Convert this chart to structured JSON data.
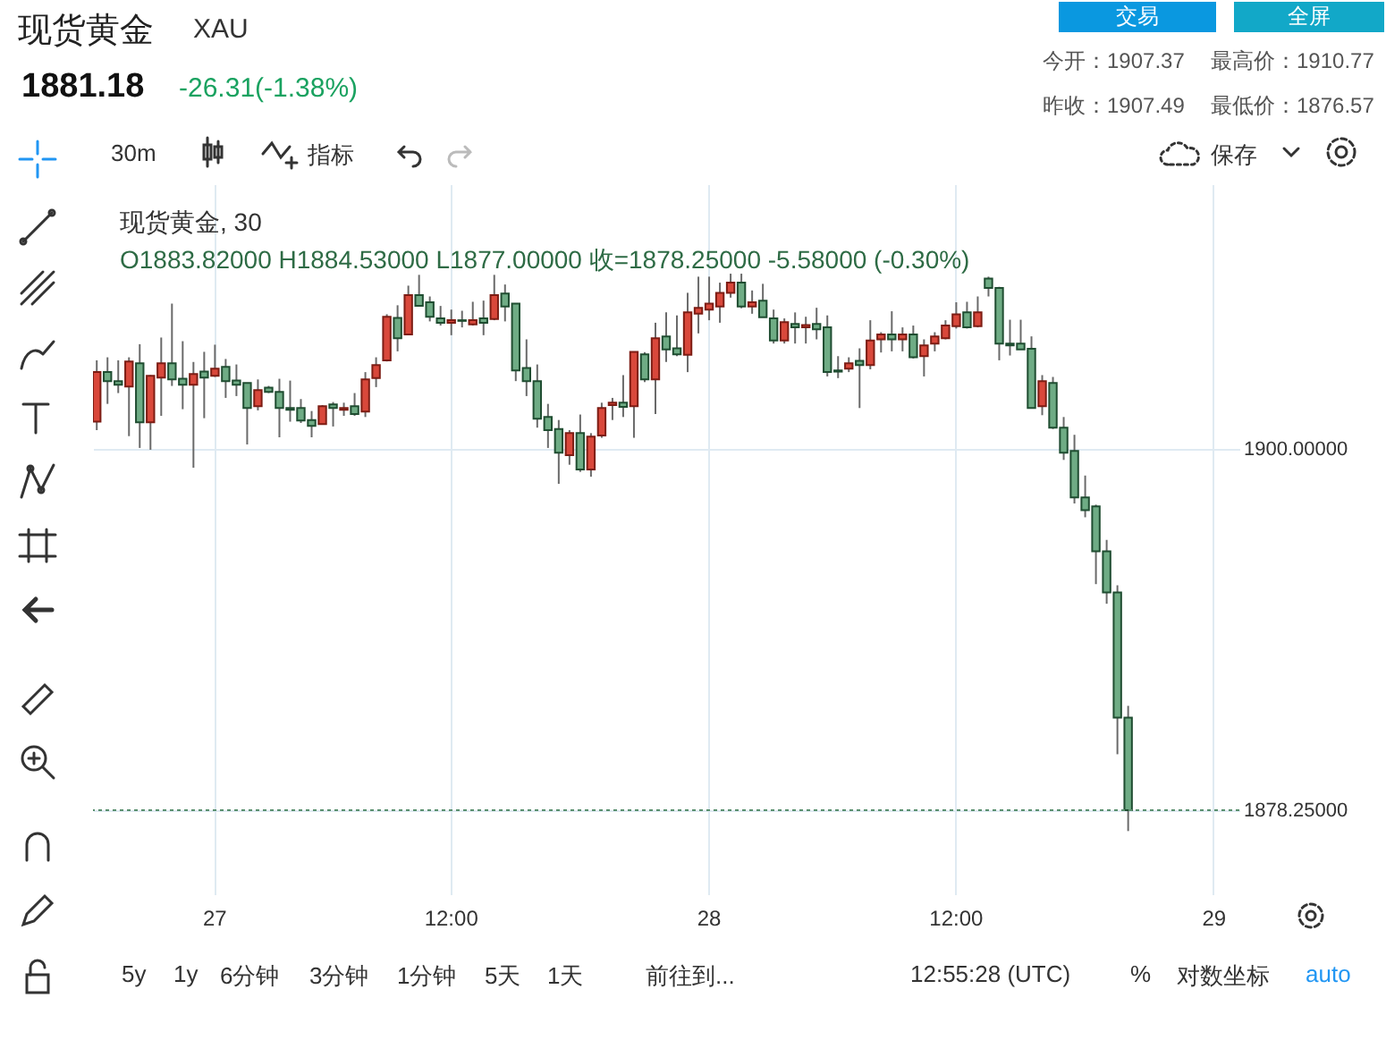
{
  "chart_data": {
    "type": "candlestick",
    "title": "现货黄金",
    "subtitle": "XAU",
    "annotations": [
      "1881.18",
      "-26.31(-1.38%)",
      "今开：1907.37",
      "最高价：1910.77",
      "昨收：1907.49",
      "最低价：1876.57",
      "交易",
      "全屏",
      "30m",
      "指标",
      "保存",
      "现货黄金, 30",
      "O1883.82000  H1884.53000  L1877.00000  收=1878.25000  -5.58000 (-0.30%)",
      "5y",
      "1y",
      "6分钟",
      "3分钟",
      "1分钟",
      "5天",
      "1天",
      "前往到...",
      "12:55:28 (UTC)",
      "%",
      "对数坐标",
      "auto"
    ],
    "categories": [
      null,
      null,
      null,
      null,
      null,
      null,
      null,
      null,
      null,
      null,
      null,
      "27",
      null,
      null,
      null,
      null,
      null,
      null,
      null,
      null,
      null,
      null,
      null,
      null,
      null,
      null,
      null,
      null,
      null,
      null,
      null,
      null,
      null,
      "12:00",
      null,
      null,
      null,
      null,
      null,
      null,
      null,
      null,
      null,
      null,
      null,
      null,
      null,
      null,
      null,
      null,
      null,
      null,
      null,
      null,
      null,
      null,
      null,
      "28",
      null,
      null,
      null,
      null,
      null,
      null,
      null,
      null,
      null,
      null,
      null,
      null,
      null,
      null,
      null,
      null,
      null,
      null,
      null,
      null,
      null,
      null,
      "12:00",
      null,
      null,
      null,
      null,
      null,
      null,
      null,
      null,
      null,
      null,
      null,
      null,
      null,
      null,
      null,
      null,
      null,
      null,
      null,
      null,
      null,
      null,
      null,
      "29",
      null,
      null
    ],
    "ohlc": [
      [
        1901.62,
        1905.31,
        1901.11,
        1904.6
      ],
      [
        1904.6,
        1905.49,
        1902.69,
        1904.06
      ],
      [
        1904.06,
        1905.31,
        1903.34,
        1903.84
      ],
      [
        1903.73,
        1905.49,
        1900.75,
        1905.24
      ],
      [
        1905.13,
        1906.28,
        1900.04,
        1901.58
      ],
      [
        1901.58,
        1904.42,
        1899.93,
        1904.38
      ],
      [
        1904.27,
        1906.68,
        1901.97,
        1905.13
      ],
      [
        1905.13,
        1908.72,
        1903.77,
        1904.16
      ],
      [
        1904.2,
        1906.46,
        1902.37,
        1903.84
      ],
      [
        1903.84,
        1905.21,
        1898.85,
        1904.49
      ],
      [
        1904.63,
        1905.82,
        1901.83,
        1904.27
      ],
      [
        1904.38,
        1906.25,
        1904.31,
        1904.81
      ],
      [
        1904.92,
        1905.39,
        1903.05,
        1904.06
      ],
      [
        1904.09,
        1905.06,
        1903.16,
        1903.84
      ],
      [
        1903.95,
        1903.95,
        1900.25,
        1902.44
      ],
      [
        1902.55,
        1904.16,
        1902.3,
        1903.52
      ],
      [
        1903.66,
        1903.77,
        1903.34,
        1903.41
      ],
      [
        1903.41,
        1904.2,
        1900.68,
        1902.44
      ],
      [
        1902.44,
        1904.09,
        1901.62,
        1902.33
      ],
      [
        1902.44,
        1902.98,
        1901.54,
        1901.69
      ],
      [
        1901.72,
        1902.26,
        1900.68,
        1901.36
      ],
      [
        1901.47,
        1902.62,
        1901.44,
        1902.55
      ],
      [
        1902.66,
        1902.8,
        1901.33,
        1902.44
      ],
      [
        1902.33,
        1902.76,
        1901.97,
        1902.44
      ],
      [
        1902.55,
        1903.34,
        1901.97,
        1902.08
      ],
      [
        1902.23,
        1904.6,
        1901.9,
        1904.16
      ],
      [
        1904.24,
        1905.49,
        1903.7,
        1905.03
      ],
      [
        1905.31,
        1908.08,
        1905.24,
        1907.93
      ],
      [
        1907.86,
        1908.62,
        1905.85,
        1906.64
      ],
      [
        1906.86,
        1909.8,
        1906.82,
        1909.23
      ],
      [
        1909.23,
        1910.45,
        1908.54,
        1908.58
      ],
      [
        1908.8,
        1909.15,
        1907.65,
        1907.93
      ],
      [
        1907.83,
        1908.58,
        1907.4,
        1907.57
      ],
      [
        1907.57,
        1908.36,
        1906.82,
        1907.72
      ],
      [
        1907.72,
        1908.29,
        1907.29,
        1907.68
      ],
      [
        1907.47,
        1908.83,
        1907.4,
        1907.72
      ],
      [
        1907.83,
        1908.9,
        1906.82,
        1907.57
      ],
      [
        1907.79,
        1910.45,
        1907.72,
        1909.23
      ],
      [
        1909.33,
        1909.87,
        1907.65,
        1908.54
      ],
      [
        1908.72,
        1908.72,
        1904.06,
        1904.7
      ],
      [
        1904.85,
        1906.57,
        1903.16,
        1904.06
      ],
      [
        1904.06,
        1905.06,
        1901.26,
        1901.8
      ],
      [
        1901.9,
        1902.69,
        1900.04,
        1901.11
      ],
      [
        1901.18,
        1901.72,
        1897.88,
        1899.75
      ],
      [
        1899.61,
        1901.11,
        1899.03,
        1900.93
      ],
      [
        1900.93,
        1902.05,
        1898.6,
        1898.74
      ],
      [
        1898.74,
        1900.93,
        1898.31,
        1900.72
      ],
      [
        1900.79,
        1902.76,
        1900.65,
        1902.44
      ],
      [
        1902.62,
        1903.05,
        1901.72,
        1902.76
      ],
      [
        1902.76,
        1904.42,
        1901.9,
        1902.51
      ],
      [
        1902.55,
        1905.82,
        1900.65,
        1905.82
      ],
      [
        1905.67,
        1905.8,
        1904.0,
        1904.16
      ],
      [
        1904.16,
        1907.57,
        1902.08,
        1906.64
      ],
      [
        1906.75,
        1908.19,
        1905.21,
        1905.96
      ],
      [
        1906.03,
        1908.01,
        1905.56,
        1905.67
      ],
      [
        1905.64,
        1909.37,
        1904.6,
        1908.19
      ],
      [
        1908.11,
        1910.34,
        1906.93,
        1908.47
      ],
      [
        1908.36,
        1910.34,
        1907.72,
        1908.72
      ],
      [
        1908.54,
        1909.98,
        1907.57,
        1909.37
      ],
      [
        1909.37,
        1910.52,
        1909.08,
        1909.98
      ],
      [
        1909.98,
        1910.52,
        1908.44,
        1908.54
      ],
      [
        1908.54,
        1909.51,
        1908.11,
        1908.8
      ],
      [
        1908.9,
        1909.91,
        1907.9,
        1907.9
      ],
      [
        1907.83,
        1908.36,
        1906.32,
        1906.5
      ],
      [
        1906.5,
        1907.83,
        1906.32,
        1907.61
      ],
      [
        1907.5,
        1908.19,
        1906.32,
        1907.29
      ],
      [
        1907.29,
        1907.93,
        1906.32,
        1907.43
      ],
      [
        1907.5,
        1908.47,
        1906.57,
        1907.18
      ],
      [
        1907.29,
        1908.01,
        1904.34,
        1904.6
      ],
      [
        1904.7,
        1905.56,
        1904.24,
        1904.63
      ],
      [
        1904.81,
        1905.49,
        1904.6,
        1905.13
      ],
      [
        1905.28,
        1906.03,
        1902.44,
        1905.03
      ],
      [
        1905.03,
        1907.72,
        1904.77,
        1906.5
      ],
      [
        1906.57,
        1907.0,
        1905.78,
        1906.86
      ],
      [
        1906.86,
        1908.26,
        1905.85,
        1906.57
      ],
      [
        1906.57,
        1907.29,
        1905.85,
        1906.86
      ],
      [
        1906.86,
        1907.4,
        1905.42,
        1905.49
      ],
      [
        1905.56,
        1906.57,
        1904.34,
        1906.21
      ],
      [
        1906.32,
        1907.0,
        1905.85,
        1906.75
      ],
      [
        1906.64,
        1907.72,
        1906.57,
        1907.4
      ],
      [
        1907.36,
        1908.8,
        1907.22,
        1908.08
      ],
      [
        1908.19,
        1908.83,
        1907.22,
        1907.29
      ],
      [
        1907.36,
        1909.15,
        1907.29,
        1908.19
      ],
      [
        1910.23,
        1910.34,
        1909.15,
        1909.66
      ],
      [
        1909.66,
        1909.73,
        1905.31,
        1906.32
      ],
      [
        1906.32,
        1907.75,
        1905.6,
        1906.21
      ],
      [
        1906.32,
        1907.75,
        1905.96,
        1905.96
      ],
      [
        1906.0,
        1906.75,
        1902.44,
        1902.44
      ],
      [
        1902.55,
        1904.42,
        1902.01,
        1904.06
      ],
      [
        1903.95,
        1904.31,
        1901.18,
        1901.26
      ],
      [
        1901.26,
        1901.9,
        1899.32,
        1899.75
      ],
      [
        1899.86,
        1900.83,
        1896.7,
        1897.06
      ],
      [
        1897.06,
        1898.38,
        1895.87,
        1896.3
      ],
      [
        1896.52,
        1896.63,
        1891.85,
        1893.83
      ],
      [
        1893.83,
        1894.51,
        1890.67,
        1891.35
      ],
      [
        1891.35,
        1891.78,
        1881.62,
        1883.82
      ],
      [
        1883.82,
        1884.53,
        1877.0,
        1878.25
      ],
      null,
      null,
      null,
      null,
      null,
      null,
      null,
      null,
      null,
      null
    ],
    "ylim": [
      1873.2,
      1915.9
    ],
    "yticks": [
      {
        "value": 1900,
        "label": "1900.00000"
      },
      {
        "value": 1878.25,
        "label": "1878.25000"
      }
    ],
    "ref_lines": [
      {
        "axis": "y",
        "value": 1878.25,
        "color": "#5a8f6e",
        "line_style": "dotted"
      }
    ],
    "grid": true
  }
}
